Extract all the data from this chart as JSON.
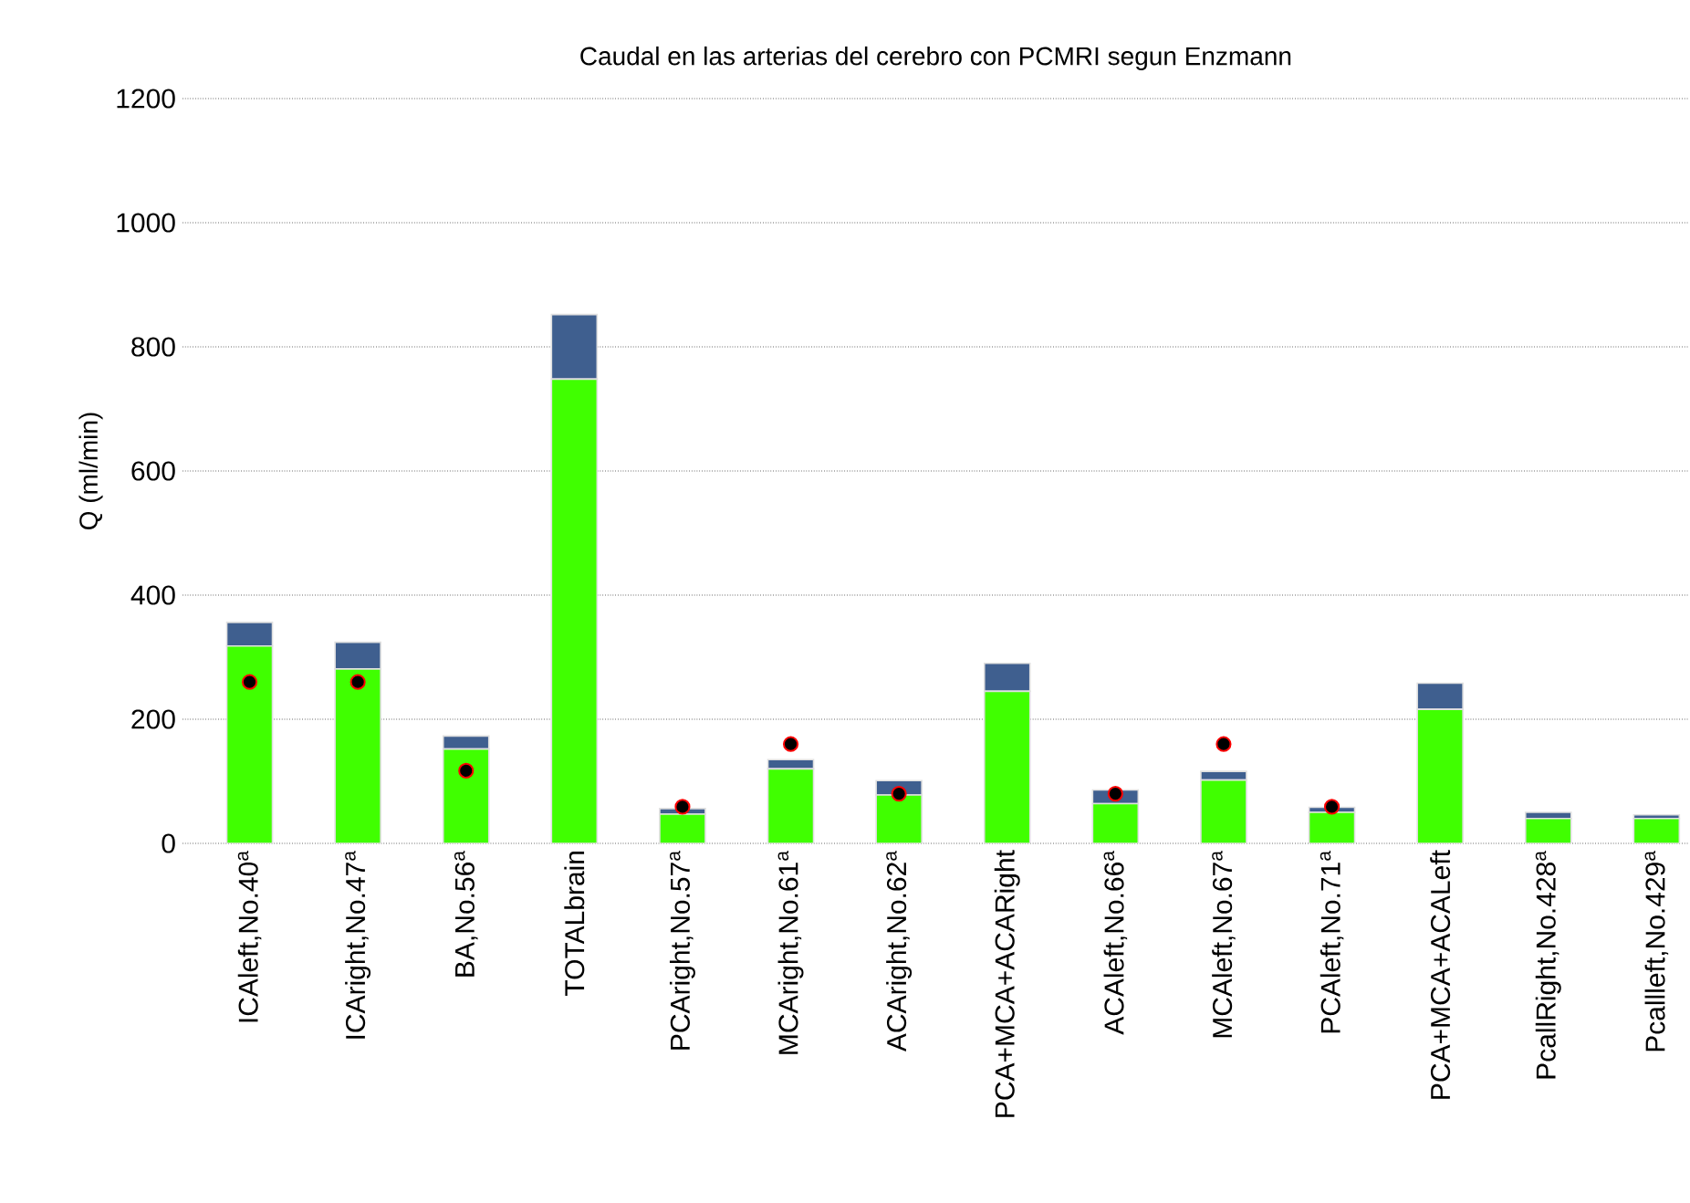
{
  "chart_data": {
    "type": "bar",
    "title": "Caudal en las arterias del cerebro con PCMRI segun Enzmann",
    "ylabel": "Q (ml/min)",
    "categories": [
      "ICAleft,No.40$^{a}$",
      "ICAright,No.47$^{a}$",
      "BA,No.56$^{a}$",
      "TOTALbrain",
      "PCAright,No.57$^{a}$",
      "MCAright,No.61$^{a}$",
      "ACAright,No.62$^{a}$",
      "PCA+MCA+ACARight",
      "ACAleft,No.66$^{a}$",
      "MCAleft,No.67$^{a}$",
      "PCAleft,No.71$^{a}$",
      "PCA+MCA+ACALeft",
      "PcallRight,No.428$^{a}$",
      "Pcallleft,No.429$^{a}$"
    ],
    "stacked": true,
    "series": [
      {
        "color": "#40ff00",
        "values": [
          318,
          281,
          152,
          748,
          47,
          120,
          78,
          245,
          64,
          102,
          50,
          216,
          40,
          40
        ]
      },
      {
        "color": "#3f5f8f",
        "values": [
          38,
          43,
          21,
          104,
          9,
          15,
          23,
          45,
          22,
          14,
          8,
          42,
          10,
          6
        ]
      },
      {
        "type": "scatter",
        "color": "#000000",
        "marker": "circle",
        "values": [
          260,
          260,
          117,
          null,
          59,
          160,
          80,
          null,
          80,
          160,
          59,
          null,
          null,
          null
        ]
      }
    ],
    "ylim": [
      0,
      1200
    ],
    "yticks": [
      0,
      200,
      400,
      600,
      800,
      1000,
      1200
    ],
    "grid": "y"
  }
}
